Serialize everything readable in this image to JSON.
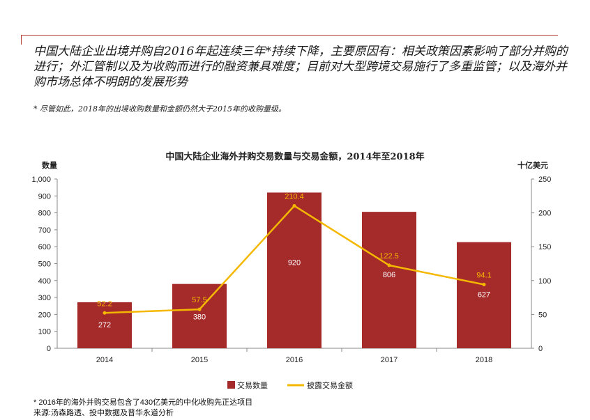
{
  "headline": "中国大陆企业出境并购自2016年起连续三年*持续下降，主要原因有：相关政策因素影响了部分并购的进行；外汇管制以及为收购而进行的融资兼具难度；目前对大型跨境交易施行了多重监管；以及海外并购市场总体不明朗的发展形势",
  "note": "* 尽管如此，2018年的出境收购数量和金额仍然大于2015年的收购量级。",
  "footnote": "* 2016年的海外并购交易包含了430亿美元的中化收购先正达项目",
  "source": "来源:汤森路透、投中数据及普华永道分析",
  "chart_data": {
    "type": "bar+line",
    "title": "中国大陆企业海外并购交易数量与交易金额，2014年至2018年",
    "categories": [
      "2014",
      "2015",
      "2016",
      "2017",
      "2018"
    ],
    "ylabel_left": "数量",
    "ylabel_right": "十亿美元",
    "ylim_left": [
      0,
      1000
    ],
    "ylim_right": [
      0,
      250
    ],
    "yticks_left": [
      "0",
      "100",
      "200",
      "300",
      "400",
      "500",
      "600",
      "700",
      "800",
      "900",
      "1,000"
    ],
    "yticks_right": [
      "0",
      "50",
      "100",
      "150",
      "200",
      "250"
    ],
    "series": [
      {
        "name": "交易数量",
        "type": "bar",
        "axis": "left",
        "values": [
          272,
          380,
          920,
          806,
          627
        ],
        "labels": [
          "272",
          "380",
          "920",
          "806",
          "627"
        ]
      },
      {
        "name": "披露交易金额",
        "type": "line",
        "axis": "right",
        "values": [
          52.2,
          57.5,
          210.4,
          122.5,
          94.1
        ],
        "labels": [
          "52.2",
          "57.5",
          "210.4",
          "122.5",
          "94.1"
        ]
      }
    ],
    "legend_position": "bottom",
    "grid": false,
    "colors": {
      "bar": "#a52a2a",
      "line": "#f5b800",
      "bar_label": "#ffffff",
      "line_label": "#f5b800"
    }
  }
}
